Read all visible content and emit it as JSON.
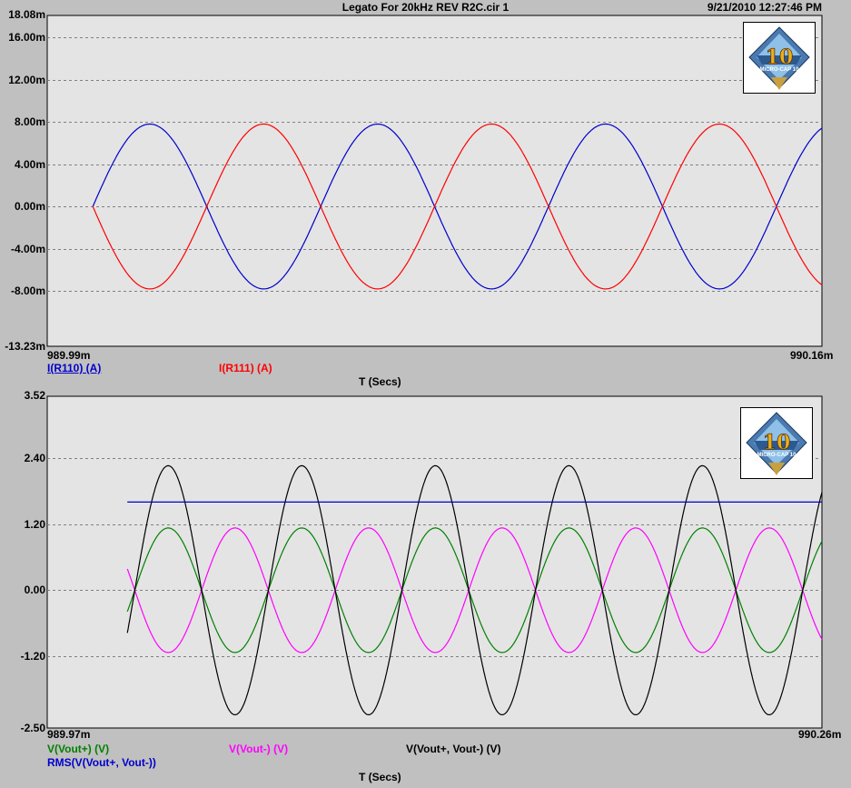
{
  "window": {
    "title": "Legato For 20kHz REV R2C.cir 1",
    "datetime": "9/21/2010 12:27:46 PM"
  },
  "colors": {
    "plot_bg": "#e4e4e4",
    "grid": "#808080",
    "blue": "#0000cc",
    "red": "#ff0000",
    "green": "#008000",
    "magenta": "#ff00ff",
    "black": "#000000"
  },
  "logo": {
    "icon": "micro-cap-10-logo",
    "text": "10",
    "caption": "MICRO-CAP 10"
  },
  "chart_data": [
    {
      "type": "line",
      "title": "",
      "xlabel": "T (Secs)",
      "ylabel": "",
      "xlim": [
        989.99,
        990.16
      ],
      "x_tick_labels": [
        "989.99m",
        "990.16m"
      ],
      "ylim": [
        -13.23,
        18.08
      ],
      "y_tick_labels": [
        "18.08m",
        "16.00m",
        "12.00m",
        "8.00m",
        "4.00m",
        "0.00m",
        "-4.00m",
        "-8.00m",
        "-13.23m"
      ],
      "y_ticks": [
        16,
        12,
        8,
        4,
        0,
        -4,
        -8
      ],
      "grid": true,
      "series": [
        {
          "name": "I(R110) (A)",
          "color": "#0000cc",
          "amplitude": 7.8,
          "phase": 1,
          "underline": true
        },
        {
          "name": "I(R111) (A)",
          "color": "#ff0000",
          "amplitude": 7.8,
          "phase": -1
        }
      ],
      "waveform": {
        "start": 990.0,
        "end": 990.16,
        "frequency_kHz": 20,
        "shape": "sine"
      }
    },
    {
      "type": "line",
      "title": "",
      "xlabel": "T (Secs)",
      "ylabel": "",
      "xlim": [
        989.97,
        990.26
      ],
      "x_tick_labels": [
        "989.97m",
        "990.26m"
      ],
      "ylim": [
        -2.5,
        3.52
      ],
      "y_tick_labels": [
        "3.52",
        "2.40",
        "1.20",
        "0.00",
        "-1.20",
        "-2.50"
      ],
      "y_ticks": [
        2.4,
        1.2,
        0,
        -1.2
      ],
      "grid": true,
      "series": [
        {
          "name": "V(Vout+) (V)",
          "color": "#008000",
          "amplitude": 1.13,
          "offset": 0,
          "type": "sine"
        },
        {
          "name": "V(Vout-) (V)",
          "color": "#ff00ff",
          "amplitude": 1.13,
          "offset": 0,
          "type": "sine-inverted"
        },
        {
          "name": "V(Vout+, Vout-) (V)",
          "color": "#000000",
          "amplitude": 2.26,
          "offset": 0,
          "type": "sine"
        },
        {
          "name": "RMS(V(Vout+, Vout-))",
          "color": "#0000cc",
          "value": 1.6,
          "type": "constant"
        }
      ],
      "waveform": {
        "start": 990.0,
        "end": 990.26,
        "frequency_kHz": 20
      }
    }
  ]
}
